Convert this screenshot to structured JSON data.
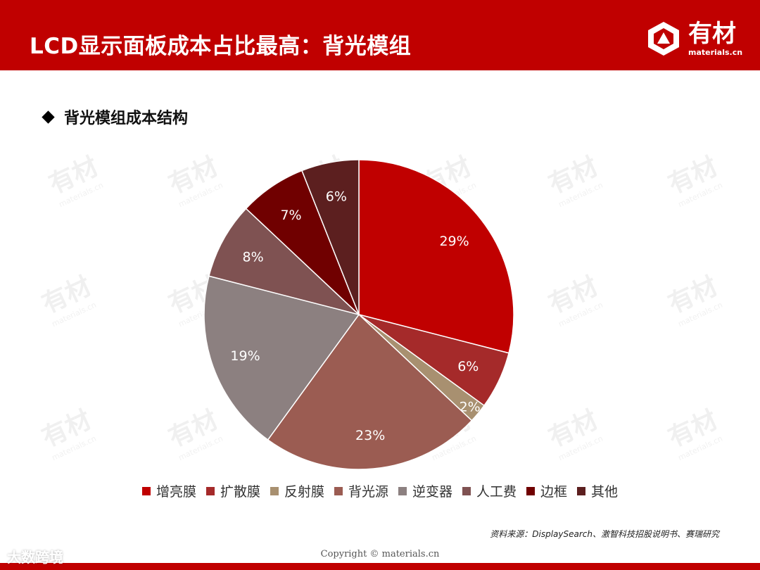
{
  "header": {
    "title": "LCD显示面板成本占比最高：背光模组",
    "logo_cn": "有材",
    "logo_en": "materials.cn"
  },
  "subtitle": "背光模组成本结构",
  "chart_data": {
    "type": "pie",
    "title": "",
    "categories": [
      "增亮膜",
      "扩散膜",
      "反射膜",
      "背光源",
      "逆变器",
      "人工费",
      "边框",
      "其他"
    ],
    "values": [
      29,
      6,
      2,
      23,
      19,
      8,
      7,
      6
    ],
    "labels": [
      "29%",
      "6%",
      "2%",
      "23%",
      "19%",
      "8%",
      "7%",
      "6%"
    ],
    "colors": [
      "#c00000",
      "#a52a2a",
      "#a89070",
      "#9b5c52",
      "#8c8080",
      "#7f5252",
      "#700000",
      "#5c1f1f"
    ],
    "start": "12 o'clock, clockwise",
    "legend_position": "bottom"
  },
  "source": "资料来源：DisplaySearch、激智科技招股说明书、赛瑞研究",
  "copyright": "Copyright © materials.cn",
  "watermark_tag": "大数跨境",
  "watermark": {
    "cn": "有材",
    "en": "materials.cn"
  }
}
